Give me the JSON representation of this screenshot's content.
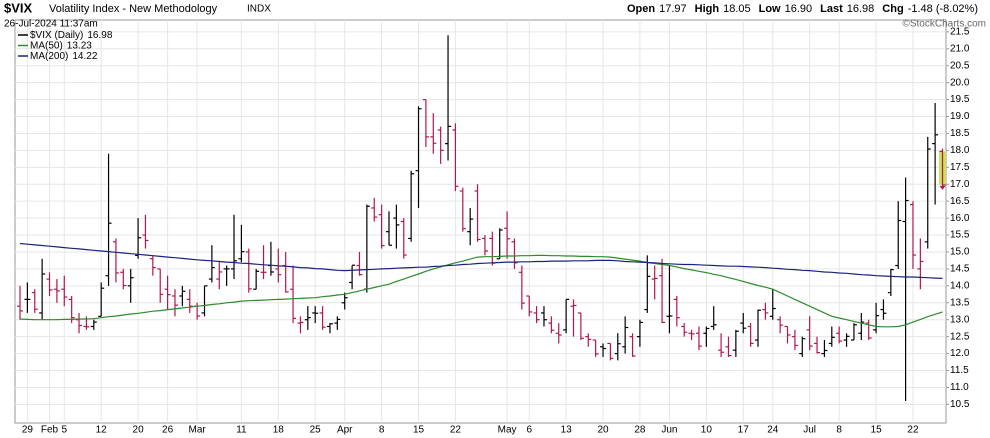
{
  "chart_data": {
    "type": "ohlc",
    "symbol": "$VIX",
    "title": "Volatility Index - New Methodology",
    "exchange": "INDX",
    "timestamp": "26-Jul-2024 11:37am",
    "credit": "©StockCharts.com",
    "quote": [
      {
        "label": "Open",
        "value": "17.97"
      },
      {
        "label": "High",
        "value": "18.05"
      },
      {
        "label": "Low",
        "value": "16.90"
      },
      {
        "label": "Last",
        "value": "16.98"
      },
      {
        "label": "Chg",
        "value": "-1.48 (-8.02%)"
      }
    ],
    "categories": [
      null,
      "29",
      null,
      null,
      "Feb",
      null,
      "5",
      null,
      null,
      null,
      null,
      "12",
      null,
      null,
      null,
      null,
      "20",
      null,
      null,
      null,
      "26",
      null,
      null,
      null,
      "Mar",
      null,
      null,
      null,
      null,
      null,
      "11",
      null,
      null,
      null,
      null,
      "18",
      null,
      null,
      null,
      null,
      "25",
      null,
      null,
      null,
      "Apr",
      null,
      null,
      null,
      null,
      "8",
      null,
      null,
      null,
      null,
      "15",
      null,
      null,
      null,
      null,
      "22",
      null,
      null,
      null,
      null,
      null,
      null,
      "May",
      null,
      null,
      "6",
      null,
      null,
      null,
      null,
      "13",
      null,
      null,
      null,
      null,
      "20",
      null,
      null,
      null,
      null,
      "28",
      null,
      null,
      null,
      "Jun",
      null,
      null,
      null,
      null,
      "10",
      null,
      null,
      null,
      null,
      "17",
      null,
      null,
      null,
      "24",
      null,
      null,
      null,
      null,
      "Jul",
      null,
      null,
      null,
      "8",
      null,
      null,
      null,
      null,
      "15",
      null,
      null,
      null,
      null,
      "22",
      null,
      null,
      null,
      null
    ],
    "series": [
      {
        "name": "$VIX (Daily)",
        "open": [
          13.4,
          13.6,
          13.8,
          13.2,
          14.2,
          13.9,
          13.9,
          13.6,
          13.0,
          12.8,
          12.8,
          13.1,
          14.3,
          15.3,
          14.4,
          14.0,
          14.9,
          15.5,
          14.8,
          14.5,
          13.9,
          13.7,
          13.7,
          13.6,
          13.4,
          13.2,
          14.2,
          14.2,
          14.5,
          14.5,
          14.8,
          15.0,
          13.9,
          14.4,
          14.6,
          14.5,
          14.6,
          13.9,
          12.9,
          13.0,
          13.2,
          13.2,
          12.8,
          12.9,
          13.5,
          14.1,
          14.6,
          13.9,
          16.3,
          16.1,
          15.6,
          16.0,
          15.9,
          15.4,
          17.4,
          19.5,
          18.4,
          18.6,
          18.2,
          18.6,
          16.8,
          15.6,
          16.8,
          15.4,
          15.4,
          14.8,
          15.7,
          15.3,
          14.4,
          13.7,
          13.2,
          13.2,
          12.9,
          12.6,
          12.7,
          13.4,
          13.2,
          12.5,
          12.4,
          12.2,
          12.3,
          12.0,
          12.2,
          12.5,
          12.5,
          13.3,
          14.2,
          14.3,
          13.1,
          13.6,
          12.8,
          12.6,
          12.6,
          12.6,
          12.8,
          12.1,
          12.2,
          12.1,
          12.9,
          12.8,
          12.4,
          13.3,
          13.1,
          13.0,
          12.8,
          12.5,
          12.0,
          12.7,
          12.3,
          12.0,
          12.3,
          12.6,
          12.4,
          12.4,
          12.6,
          12.9,
          12.7,
          13.3,
          13.8,
          14.6,
          15.9,
          16.4,
          14.5,
          15.3,
          18.2,
          17.97
        ],
        "high": [
          14.0,
          14.1,
          13.9,
          14.8,
          14.4,
          14.2,
          14.3,
          13.7,
          13.2,
          13.1,
          13.0,
          14.1,
          17.9,
          15.4,
          14.5,
          14.5,
          16.0,
          16.1,
          14.9,
          14.5,
          14.3,
          13.9,
          14.0,
          13.9,
          13.5,
          14.0,
          15.2,
          14.7,
          14.6,
          16.1,
          15.8,
          15.1,
          14.5,
          15.2,
          15.3,
          15.1,
          15.0,
          14.6,
          13.1,
          13.4,
          13.4,
          13.4,
          12.9,
          13.1,
          13.8,
          14.6,
          15.0,
          16.4,
          16.6,
          16.4,
          16.2,
          16.4,
          16.0,
          17.4,
          19.3,
          19.5,
          19.1,
          18.7,
          21.4,
          18.8,
          16.9,
          16.3,
          17.0,
          15.5,
          15.6,
          15.7,
          16.2,
          15.4,
          14.6,
          13.7,
          13.4,
          13.4,
          13.1,
          12.9,
          13.6,
          13.6,
          13.2,
          12.6,
          12.4,
          12.3,
          12.3,
          12.6,
          13.1,
          12.6,
          13.0,
          14.9,
          14.6,
          14.8,
          14.6,
          13.7,
          12.9,
          12.7,
          12.8,
          12.8,
          13.4,
          12.6,
          12.5,
          12.7,
          13.2,
          12.9,
          13.3,
          13.5,
          13.9,
          13.1,
          12.8,
          12.7,
          12.5,
          13.1,
          12.5,
          12.4,
          12.8,
          12.8,
          12.6,
          12.9,
          13.2,
          13.0,
          13.5,
          13.6,
          14.5,
          16.5,
          17.2,
          16.5,
          15.4,
          18.4,
          19.4,
          18.05
        ],
        "low": [
          13.0,
          13.2,
          13.2,
          13.0,
          13.7,
          13.5,
          13.4,
          12.9,
          12.6,
          12.7,
          12.7,
          13.1,
          14.0,
          14.1,
          13.9,
          13.5,
          14.8,
          15.1,
          14.3,
          13.5,
          13.3,
          13.1,
          13.4,
          13.2,
          13.0,
          13.1,
          14.1,
          13.9,
          14.0,
          14.2,
          14.7,
          13.8,
          13.9,
          14.2,
          14.3,
          14.1,
          13.8,
          12.9,
          12.6,
          12.7,
          12.9,
          12.7,
          12.6,
          12.7,
          13.3,
          13.9,
          14.3,
          13.8,
          15.9,
          15.1,
          15.2,
          15.1,
          14.8,
          15.3,
          16.3,
          18.1,
          17.9,
          17.6,
          17.7,
          16.8,
          15.6,
          15.2,
          15.3,
          14.9,
          14.6,
          14.8,
          14.8,
          14.5,
          13.3,
          13.1,
          12.9,
          12.8,
          12.6,
          12.3,
          12.6,
          12.5,
          12.4,
          12.2,
          11.9,
          11.9,
          11.8,
          11.8,
          12.0,
          11.9,
          12.2,
          13.2,
          13.6,
          12.9,
          12.6,
          12.8,
          12.5,
          12.4,
          12.1,
          12.2,
          12.7,
          11.9,
          11.9,
          11.9,
          12.6,
          12.2,
          12.2,
          13.0,
          13.0,
          12.6,
          12.3,
          12.1,
          11.9,
          12.1,
          12.0,
          11.9,
          12.2,
          12.3,
          12.2,
          12.4,
          12.4,
          12.4,
          12.6,
          13.0,
          13.7,
          14.5,
          10.6,
          14.5,
          13.9,
          15.1,
          16.4,
          16.9
        ],
        "close": [
          13.26,
          13.6,
          13.31,
          14.35,
          13.88,
          13.85,
          13.67,
          13.06,
          12.83,
          12.79,
          12.93,
          13.93,
          15.85,
          14.38,
          14.01,
          14.24,
          15.42,
          15.34,
          14.54,
          13.75,
          13.74,
          13.43,
          13.84,
          13.4,
          13.11,
          14.0,
          14.54,
          14.41,
          14.5,
          14.74,
          15.01,
          13.91,
          14.43,
          14.4,
          14.41,
          14.33,
          13.82,
          13.04,
          12.92,
          13.06,
          13.19,
          12.78,
          12.88,
          13.01,
          13.65,
          14.61,
          14.33,
          16.35,
          16.03,
          15.19,
          15.2,
          15.8,
          14.91,
          17.31,
          19.23,
          18.4,
          18.21,
          18.0,
          18.71,
          16.94,
          15.69,
          15.97,
          15.37,
          15.03,
          14.67,
          15.65,
          15.39,
          14.68,
          13.49,
          13.23,
          13.0,
          13.0,
          12.69,
          12.55,
          13.6,
          13.42,
          12.45,
          12.42,
          11.99,
          12.15,
          11.86,
          12.29,
          12.77,
          11.93,
          12.92,
          14.28,
          14.22,
          12.92,
          13.11,
          13.06,
          12.63,
          12.58,
          12.22,
          12.74,
          12.85,
          12.04,
          11.94,
          12.66,
          12.75,
          12.3,
          13.28,
          13.2,
          13.33,
          12.84,
          12.55,
          12.24,
          12.44,
          12.22,
          12.03,
          12.09,
          12.48,
          12.37,
          12.51,
          12.85,
          12.93,
          12.46,
          13.12,
          13.19,
          14.48,
          15.93,
          16.52,
          14.91,
          14.72,
          18.04,
          18.46,
          16.98
        ]
      },
      {
        "name": "MA(50)",
        "color": "#2e8b2e",
        "values": [
          13.02,
          13.01,
          13.0,
          13.0,
          13.0,
          13.0,
          13.01,
          13.01,
          13.02,
          13.02,
          13.03,
          13.06,
          13.09,
          13.11,
          13.14,
          13.17,
          13.19,
          13.22,
          13.25,
          13.27,
          13.3,
          13.32,
          13.35,
          13.37,
          13.4,
          13.42,
          13.45,
          13.47,
          13.5,
          13.52,
          13.55,
          13.56,
          13.57,
          13.58,
          13.59,
          13.6,
          13.61,
          13.62,
          13.63,
          13.64,
          13.65,
          13.68,
          13.7,
          13.73,
          13.75,
          13.8,
          13.85,
          13.9,
          13.95,
          14.0,
          14.05,
          14.13,
          14.2,
          14.28,
          14.35,
          14.43,
          14.5,
          14.56,
          14.62,
          14.68,
          14.73,
          14.79,
          14.85,
          14.86,
          14.86,
          14.87,
          14.88,
          14.88,
          14.89,
          14.89,
          14.9,
          14.9,
          14.89,
          14.89,
          14.88,
          14.88,
          14.87,
          14.87,
          14.86,
          14.86,
          14.85,
          14.82,
          14.79,
          14.76,
          14.73,
          14.69,
          14.66,
          14.63,
          14.6,
          14.56,
          14.51,
          14.47,
          14.43,
          14.39,
          14.34,
          14.3,
          14.24,
          14.19,
          14.13,
          14.07,
          14.01,
          13.96,
          13.9,
          13.8,
          13.7,
          13.6,
          13.5,
          13.4,
          13.3,
          13.2,
          13.1,
          13.05,
          13.0,
          12.95,
          12.9,
          12.85,
          12.8,
          12.79,
          12.79,
          12.8,
          12.85,
          12.93,
          13.01,
          13.09,
          13.16,
          13.23
        ]
      },
      {
        "name": "MA(200)",
        "color": "#1a237e",
        "values": [
          15.25,
          15.23,
          15.21,
          15.19,
          15.17,
          15.15,
          15.13,
          15.11,
          15.09,
          15.07,
          15.05,
          15.03,
          15.01,
          14.99,
          14.97,
          14.95,
          14.93,
          14.91,
          14.89,
          14.87,
          14.85,
          14.83,
          14.81,
          14.79,
          14.77,
          14.75,
          14.74,
          14.72,
          14.7,
          14.69,
          14.67,
          14.66,
          14.64,
          14.62,
          14.61,
          14.59,
          14.58,
          14.56,
          14.54,
          14.53,
          14.51,
          14.5,
          14.48,
          14.46,
          14.45,
          14.46,
          14.47,
          14.48,
          14.49,
          14.5,
          14.51,
          14.52,
          14.53,
          14.54,
          14.55,
          14.55,
          14.57,
          14.58,
          14.6,
          14.61,
          14.63,
          14.64,
          14.66,
          14.67,
          14.68,
          14.69,
          14.7,
          14.7,
          14.71,
          14.71,
          14.72,
          14.72,
          14.73,
          14.73,
          14.73,
          14.74,
          14.74,
          14.74,
          14.75,
          14.75,
          14.75,
          14.74,
          14.72,
          14.71,
          14.7,
          14.69,
          14.68,
          14.66,
          14.65,
          14.64,
          14.63,
          14.63,
          14.62,
          14.61,
          14.6,
          14.59,
          14.58,
          14.58,
          14.57,
          14.56,
          14.55,
          14.54,
          14.52,
          14.51,
          14.49,
          14.48,
          14.46,
          14.45,
          14.43,
          14.41,
          14.4,
          14.38,
          14.37,
          14.35,
          14.33,
          14.32,
          14.3,
          14.29,
          14.28,
          14.27,
          14.26,
          14.26,
          14.25,
          14.24,
          14.23,
          14.22
        ]
      }
    ],
    "ylim": [
      9.95,
      21.85
    ],
    "yticks": [
      10.5,
      {
        "value": 11,
        "label": "11.0"
      },
      11.5,
      {
        "value": 12,
        "label": "12.0"
      },
      12.5,
      {
        "value": 13,
        "label": "13.0"
      },
      13.5,
      {
        "value": 14,
        "label": "14.0"
      },
      14.5,
      {
        "value": 15,
        "label": "15.0"
      },
      15.5,
      {
        "value": 16,
        "label": "16.0"
      },
      16.5,
      {
        "value": 17,
        "label": "17.0"
      },
      17.5,
      {
        "value": 18,
        "label": "18.0"
      },
      18.5,
      {
        "value": 19,
        "label": "19.0"
      },
      19.5,
      {
        "value": 20,
        "label": "20.0"
      },
      20.5,
      {
        "value": 21,
        "label": "21.0"
      },
      21.5
    ],
    "grid": true,
    "up_color": "#000000",
    "down_color": "#b3174b",
    "highlight_color": "#c9e25a"
  }
}
